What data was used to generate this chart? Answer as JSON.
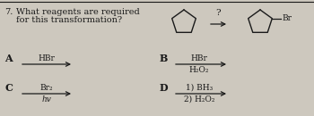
{
  "title_num": "7.",
  "question_line1": "What reagents are required",
  "question_line2": "for this transformation?",
  "bg_color": "#cdc8be",
  "text_color": "#1a1a1a",
  "opt_A_label": "A",
  "opt_A_line1": "HBr",
  "opt_B_label": "B",
  "opt_B_line1": "HBr",
  "opt_B_line2": "H₂O₂",
  "opt_C_label": "C",
  "opt_C_line1": "Br₂",
  "opt_C_line2": "hv",
  "opt_D_label": "D",
  "opt_D_line1": "1) BH₃",
  "opt_D_line2": "2) H₂O₂",
  "question_mark": "?",
  "br_label": "Br"
}
